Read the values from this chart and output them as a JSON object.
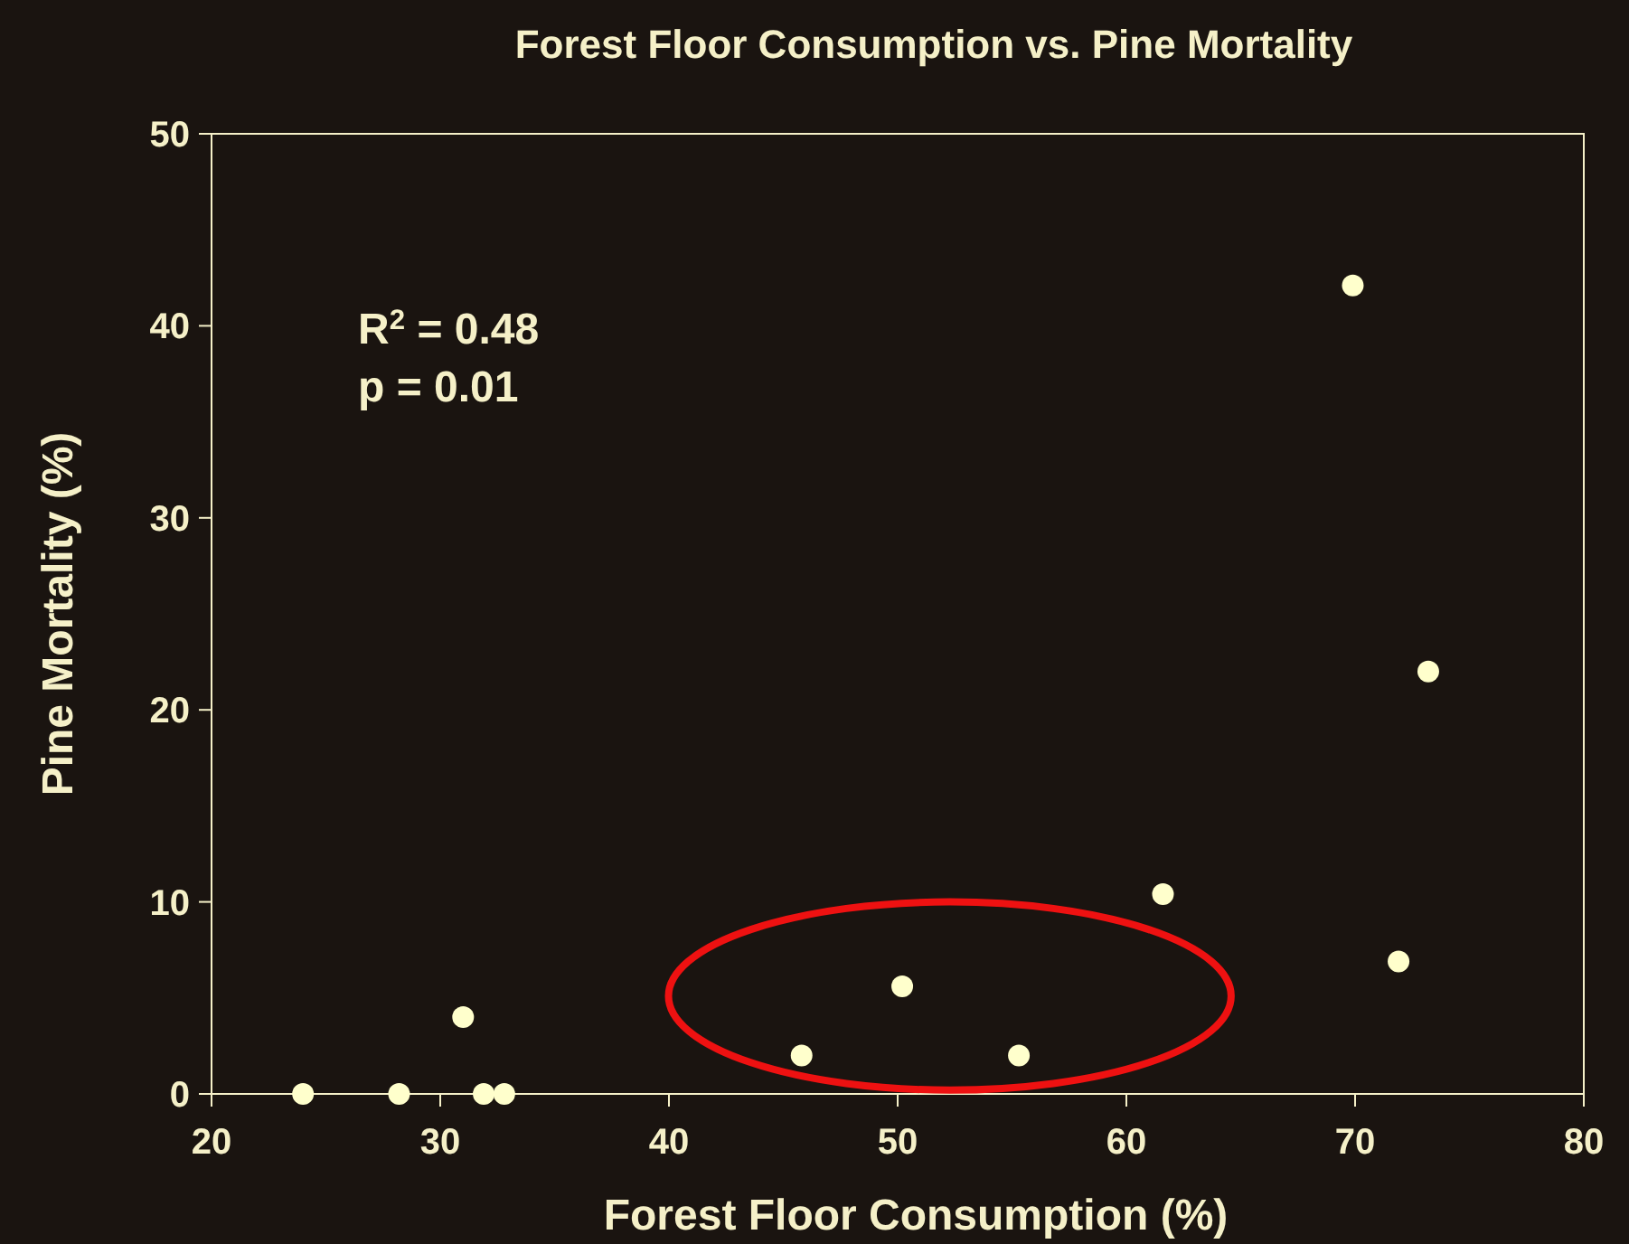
{
  "chart_data": {
    "type": "scatter",
    "title": "Forest Floor Consumption vs. Pine Mortality",
    "xlabel": "Forest Floor Consumption (%)",
    "ylabel": "Pine Mortality (%)",
    "x": [
      24,
      28.2,
      31,
      31.9,
      32.8,
      45.8,
      50.2,
      55.3,
      61.6,
      69.9,
      71.9,
      73.2
    ],
    "series": [
      {
        "color": "#ffffcc",
        "values": [
          0,
          0,
          4,
          0,
          0,
          2,
          5.6,
          2,
          10.4,
          42.1,
          6.9,
          22
        ]
      }
    ],
    "xlim": [
      20,
      80
    ],
    "xticks": [
      20,
      30,
      40,
      50,
      60,
      70,
      80
    ],
    "ylim": [
      0,
      50
    ],
    "yticks": [
      0,
      10,
      20,
      30,
      40,
      50
    ],
    "annotations": [
      "R$^{2}$ = 0.48",
      "p = 0.01"
    ],
    "marker": "circle",
    "grid": false
  }
}
